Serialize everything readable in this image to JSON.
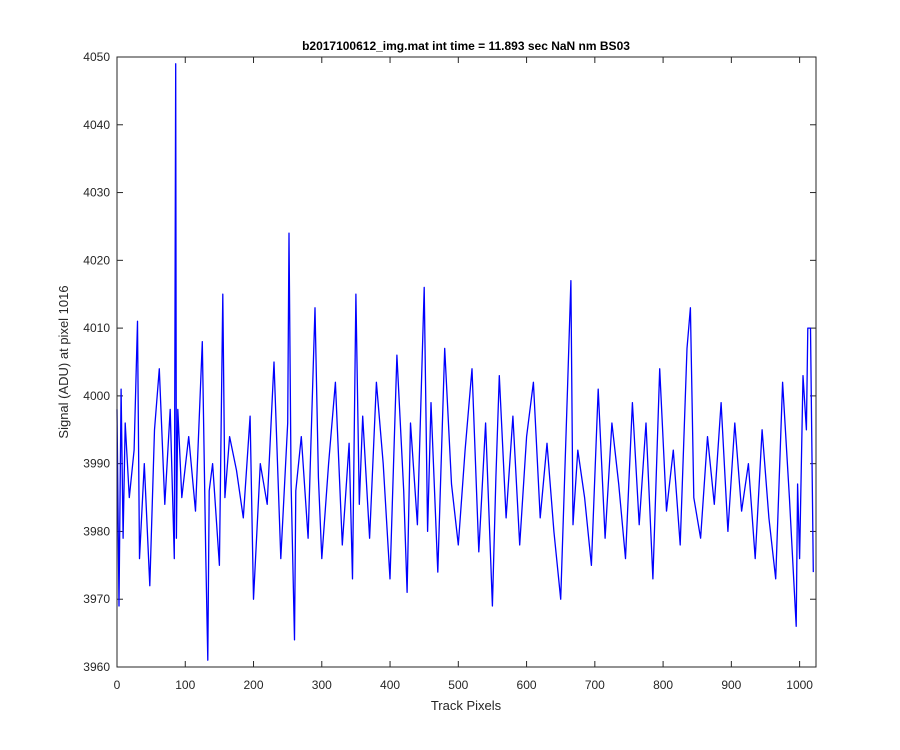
{
  "chart_data": {
    "type": "line",
    "title": "b2017100612_img.mat int time = 11.893 sec  NaN nm BS03",
    "xlabel": "Track Pixels",
    "ylabel": "Signal (ADU) at pixel 1016",
    "xlim": [
      0,
      1024
    ],
    "ylim": [
      3960,
      4050
    ],
    "xticks": [
      0,
      100,
      200,
      300,
      400,
      500,
      600,
      700,
      800,
      900,
      1000
    ],
    "yticks": [
      3960,
      3970,
      3980,
      3990,
      4000,
      4010,
      4020,
      4030,
      4040,
      4050
    ],
    "grid": false,
    "legend": "none",
    "series": [
      {
        "color": "#0000ff",
        "x": [
          0,
          3,
          6,
          9,
          12,
          18,
          25,
          30,
          33,
          40,
          48,
          55,
          62,
          70,
          78,
          84,
          86,
          87,
          89,
          95,
          105,
          115,
          125,
          130,
          133,
          135,
          140,
          150,
          155,
          158,
          165,
          175,
          185,
          195,
          200,
          210,
          220,
          230,
          240,
          250,
          252,
          255,
          260,
          262,
          270,
          280,
          290,
          295,
          300,
          310,
          320,
          330,
          340,
          345,
          350,
          355,
          360,
          370,
          380,
          390,
          400,
          410,
          420,
          425,
          430,
          440,
          450,
          455,
          460,
          470,
          480,
          490,
          500,
          510,
          520,
          530,
          540,
          550,
          555,
          560,
          570,
          580,
          590,
          600,
          610,
          620,
          630,
          640,
          650,
          660,
          665,
          668,
          675,
          685,
          695,
          705,
          715,
          725,
          735,
          745,
          755,
          765,
          775,
          785,
          795,
          805,
          815,
          825,
          835,
          840,
          845,
          855,
          865,
          875,
          885,
          895,
          905,
          915,
          925,
          935,
          945,
          955,
          965,
          975,
          985,
          995,
          997,
          1000,
          1005,
          1010,
          1012,
          1016,
          1020
        ],
        "y": [
          3998,
          3969,
          4001,
          3979,
          3996,
          3985,
          3992,
          4011,
          3976,
          3990,
          3972,
          3995,
          4004,
          3984,
          3998,
          3976,
          4049,
          3979,
          3998,
          3985,
          3994,
          3983,
          4008,
          3977,
          3961,
          3986,
          3990,
          3975,
          4015,
          3985,
          3994,
          3989,
          3982,
          3997,
          3970,
          3990,
          3984,
          4005,
          3976,
          3996,
          4024,
          3987,
          3964,
          3986,
          3994,
          3979,
          4013,
          3988,
          3976,
          3990,
          4002,
          3978,
          3993,
          3973,
          4015,
          3984,
          3997,
          3979,
          4002,
          3990,
          3973,
          4006,
          3986,
          3971,
          3996,
          3981,
          4016,
          3980,
          3999,
          3974,
          4007,
          3987,
          3978,
          3992,
          4004,
          3977,
          3996,
          3969,
          3988,
          4003,
          3982,
          3997,
          3978,
          3994,
          4002,
          3982,
          3993,
          3980,
          3970,
          4001,
          4017,
          3981,
          3992,
          3985,
          3975,
          4001,
          3979,
          3996,
          3987,
          3976,
          3999,
          3981,
          3996,
          3973,
          4004,
          3983,
          3992,
          3978,
          4007,
          4013,
          3985,
          3979,
          3994,
          3984,
          3999,
          3980,
          3996,
          3983,
          3990,
          3976,
          3995,
          3982,
          3973,
          4002,
          3985,
          3966,
          3987,
          3976,
          4003,
          3995,
          4010,
          4010,
          3974
        ]
      }
    ]
  }
}
